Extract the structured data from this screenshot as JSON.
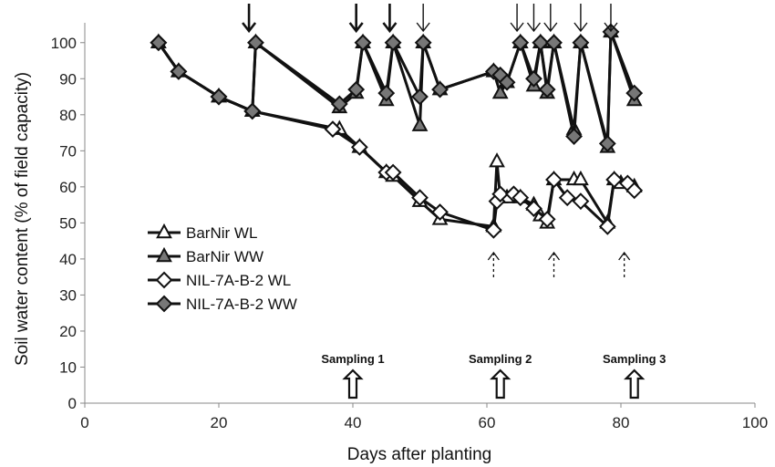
{
  "chart_data": {
    "type": "line",
    "xlabel": "Days after planting",
    "ylabel": "Soil water content  (% of field capacity)",
    "xlim": [
      0,
      100
    ],
    "ylim": [
      0,
      105
    ],
    "x_ticks": [
      "0",
      "20",
      "40",
      "60",
      "80",
      "100"
    ],
    "y_ticks": [
      "0",
      "10",
      "20",
      "30",
      "40",
      "50",
      "60",
      "70",
      "80",
      "90",
      "100"
    ],
    "grid": false,
    "legend_position": "bottom-left",
    "series": [
      {
        "name": "BarNir WL",
        "marker": "triangle",
        "fill": "#ffffff",
        "points": [
          [
            11,
            100
          ],
          [
            14,
            92
          ],
          [
            20,
            85
          ],
          [
            25,
            81
          ],
          [
            38,
            76
          ],
          [
            41,
            71
          ],
          [
            45,
            64
          ],
          [
            46,
            63
          ],
          [
            50,
            56
          ],
          [
            53,
            51
          ],
          [
            61,
            49
          ],
          [
            61.5,
            67
          ],
          [
            62,
            57
          ],
          [
            63,
            57
          ],
          [
            65,
            57
          ],
          [
            67,
            55
          ],
          [
            68,
            52
          ],
          [
            69,
            50
          ],
          [
            70,
            62
          ],
          [
            73,
            62
          ],
          [
            74,
            62
          ],
          [
            78,
            50
          ],
          [
            79,
            62
          ],
          [
            80,
            61
          ],
          [
            82,
            60
          ]
        ]
      },
      {
        "name": "BarNir WW",
        "marker": "triangle",
        "fill": "#777777",
        "points": [
          [
            11,
            100
          ],
          [
            14,
            92
          ],
          [
            20,
            85
          ],
          [
            25,
            81
          ],
          [
            25.5,
            100
          ],
          [
            38,
            82
          ],
          [
            40.5,
            86
          ],
          [
            41.5,
            100
          ],
          [
            45,
            84
          ],
          [
            46,
            100
          ],
          [
            50,
            77
          ],
          [
            50.5,
            100
          ],
          [
            53,
            87
          ],
          [
            61,
            92
          ],
          [
            62,
            86
          ],
          [
            63,
            89
          ],
          [
            65,
            100
          ],
          [
            67,
            88
          ],
          [
            68,
            100
          ],
          [
            69,
            86
          ],
          [
            70,
            100
          ],
          [
            73,
            76
          ],
          [
            74,
            100
          ],
          [
            78,
            71
          ],
          [
            78.5,
            103
          ],
          [
            82,
            84
          ]
        ]
      },
      {
        "name": "NIL-7A-B-2 WL",
        "marker": "diamond",
        "fill": "#ffffff",
        "points": [
          [
            11,
            100
          ],
          [
            14,
            92
          ],
          [
            20,
            85
          ],
          [
            25,
            81
          ],
          [
            37,
            76
          ],
          [
            41,
            71
          ],
          [
            45,
            64
          ],
          [
            46,
            64
          ],
          [
            50,
            57
          ],
          [
            53,
            53
          ],
          [
            61,
            48
          ],
          [
            61.5,
            56
          ],
          [
            62,
            58
          ],
          [
            64,
            58
          ],
          [
            65,
            57
          ],
          [
            67,
            54
          ],
          [
            69,
            51
          ],
          [
            70,
            62
          ],
          [
            72,
            57
          ],
          [
            74,
            56
          ],
          [
            78,
            49
          ],
          [
            79,
            62
          ],
          [
            81,
            61
          ],
          [
            82,
            59
          ]
        ]
      },
      {
        "name": "NIL-7A-B-2 WW",
        "marker": "diamond",
        "fill": "#777777",
        "points": [
          [
            11,
            100
          ],
          [
            14,
            92
          ],
          [
            20,
            85
          ],
          [
            25,
            81
          ],
          [
            25.5,
            100
          ],
          [
            38,
            83
          ],
          [
            40.5,
            87
          ],
          [
            41.5,
            100
          ],
          [
            45,
            86
          ],
          [
            46,
            100
          ],
          [
            50,
            85
          ],
          [
            50.5,
            100
          ],
          [
            53,
            87
          ],
          [
            61,
            92
          ],
          [
            62,
            91
          ],
          [
            63,
            89
          ],
          [
            65,
            100
          ],
          [
            67,
            90
          ],
          [
            68,
            100
          ],
          [
            69,
            87
          ],
          [
            70,
            100
          ],
          [
            73,
            74
          ],
          [
            74,
            100
          ],
          [
            78,
            72
          ],
          [
            78.5,
            103
          ],
          [
            82,
            86
          ]
        ]
      }
    ],
    "irrigation_arrows_x": [
      24.5,
      40.5,
      45.5,
      50.5,
      64.5,
      67,
      69.5,
      74,
      78.5
    ],
    "irrigation_arrows_bold": [
      true,
      true,
      true,
      false,
      false,
      false,
      false,
      false,
      false
    ],
    "dashed_arrows_x": [
      61,
      70,
      80.5
    ],
    "sampling": [
      {
        "label": "Sampling 1",
        "x": 40
      },
      {
        "label": "Sampling 2",
        "x": 62
      },
      {
        "label": "Sampling 3",
        "x": 82
      }
    ]
  }
}
